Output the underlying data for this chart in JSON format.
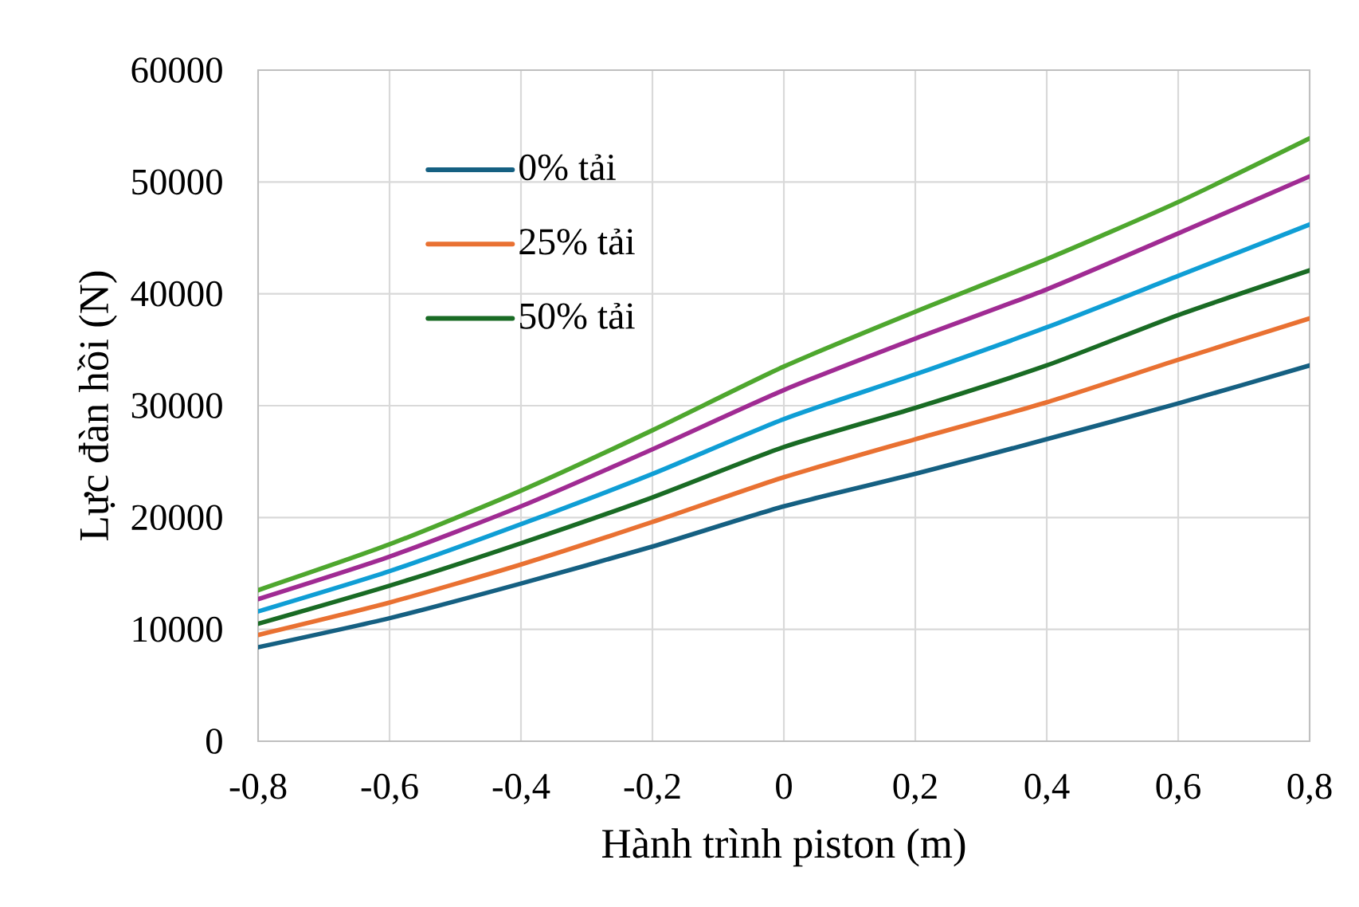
{
  "chart_data": {
    "type": "line",
    "xlabel": "Hành trình piston (m)",
    "ylabel": "Lực đàn hồi (N)",
    "x": [
      -0.8,
      -0.6,
      -0.4,
      -0.2,
      0,
      0.2,
      0.4,
      0.6,
      0.8
    ],
    "xlim": [
      -0.8,
      0.8
    ],
    "xticks": [
      {
        "value": -0.8,
        "label": "-0,8"
      },
      {
        "value": -0.6,
        "label": "-0,6"
      },
      {
        "value": -0.4,
        "label": "-0,4"
      },
      {
        "value": -0.2,
        "label": "-0,2"
      },
      0,
      {
        "value": 0.2,
        "label": "0,2"
      },
      {
        "value": 0.4,
        "label": "0,4"
      },
      {
        "value": 0.6,
        "label": "0,6"
      },
      {
        "value": 0.8,
        "label": "0,8"
      }
    ],
    "ylim": [
      0,
      60000
    ],
    "yticks": [
      0,
      10000,
      20000,
      30000,
      40000,
      50000,
      60000
    ],
    "series": [
      {
        "name": "0% tải",
        "color": "#156082",
        "values": [
          8400,
          11000,
          14100,
          17400,
          21000,
          23900,
          27000,
          30200,
          33600
        ]
      },
      {
        "name": "25% tải",
        "color": "#e97132",
        "values": [
          9500,
          12400,
          15800,
          19600,
          23600,
          27000,
          30300,
          34100,
          37800
        ]
      },
      {
        "name": "50% tải",
        "color": "#196b24",
        "values": [
          10500,
          13900,
          17700,
          21800,
          26300,
          29800,
          33600,
          38100,
          42100
        ]
      },
      {
        "color": "#0f9ed5",
        "values": [
          11600,
          15200,
          19400,
          23900,
          28800,
          32800,
          37000,
          41600,
          46200
        ]
      },
      {
        "color": "#a02b93",
        "values": [
          12700,
          16500,
          21000,
          26100,
          31400,
          36000,
          40400,
          45400,
          50500
        ]
      },
      {
        "color": "#4ea72e",
        "values": [
          13500,
          17600,
          22400,
          27800,
          33500,
          38400,
          43100,
          48200,
          53900
        ]
      }
    ],
    "grid": true,
    "legend": "top left",
    "marker": "none",
    "line_style": "solid"
  }
}
